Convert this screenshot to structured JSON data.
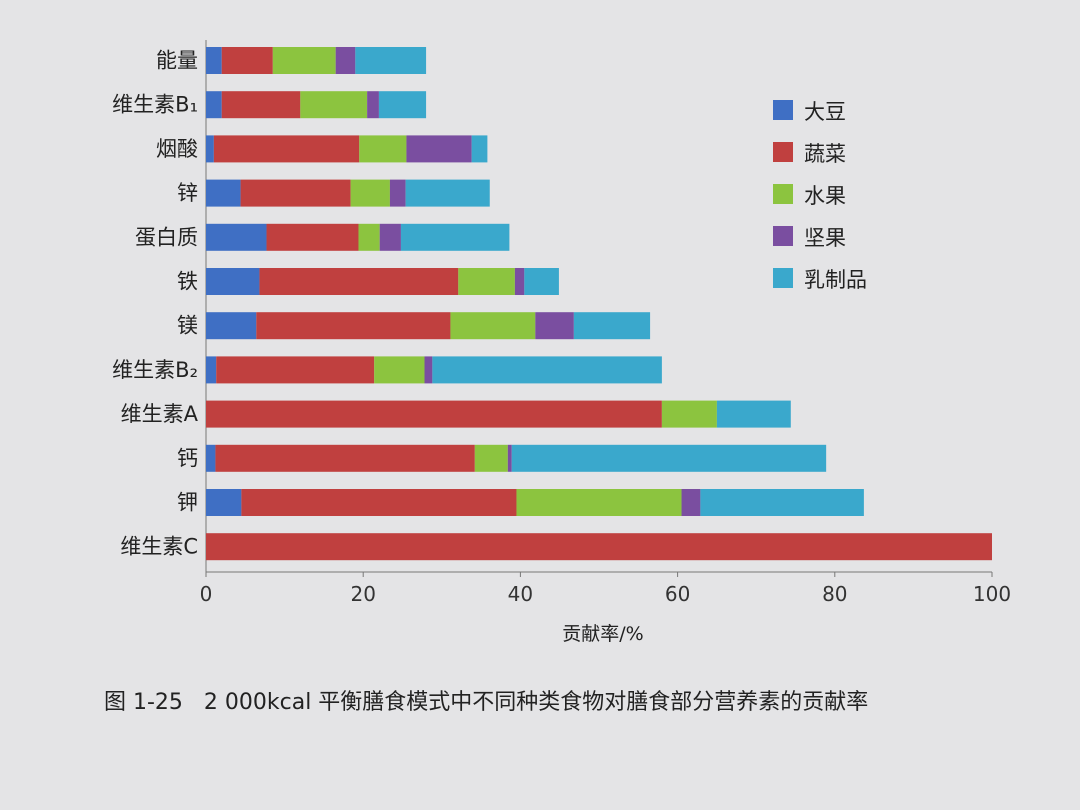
{
  "chart_data": {
    "type": "bar",
    "orientation": "horizontal",
    "stacked": true,
    "categories": [
      "能量",
      "维生素B₁",
      "烟酸",
      "锌",
      "蛋白质",
      "铁",
      "镁",
      "维生素B₂",
      "维生素A",
      "钙",
      "钾",
      "维生素C"
    ],
    "series": [
      {
        "name": "大豆",
        "color": "#3f6fc4",
        "values": [
          2,
          2,
          1,
          4.4,
          7.7,
          6.8,
          6.4,
          1.3,
          0,
          1.2,
          4.5,
          0
        ]
      },
      {
        "name": "蔬菜",
        "color": "#c0403f",
        "values": [
          6.5,
          10,
          18.5,
          14,
          11.7,
          25.3,
          24.7,
          20.1,
          58,
          33,
          35,
          100
        ]
      },
      {
        "name": "水果",
        "color": "#8cc43f",
        "values": [
          8,
          8.5,
          6,
          5,
          2.7,
          7.2,
          10.8,
          6.4,
          7,
          4.2,
          21,
          0
        ]
      },
      {
        "name": "坚果",
        "color": "#7a4ea0",
        "values": [
          2.5,
          1.5,
          8.3,
          2,
          2.7,
          1.2,
          4.9,
          1,
          0,
          0.5,
          2.4,
          0
        ]
      },
      {
        "name": "乳制品",
        "color": "#3aa8cc",
        "values": [
          9,
          6,
          2,
          10.7,
          13.8,
          4.4,
          9.7,
          29.2,
          9.4,
          40,
          20.8,
          0
        ]
      }
    ],
    "xlabel": "贡献率/%",
    "xlim": [
      0,
      100
    ],
    "xticks": [
      "0",
      "20",
      "40",
      "60",
      "80",
      "100"
    ],
    "grid": false,
    "legend_position": "right"
  },
  "caption": "图 1-25   2 000kcal 平衡膳食模式中不同种类食物对膳食部分营养素的贡献率"
}
